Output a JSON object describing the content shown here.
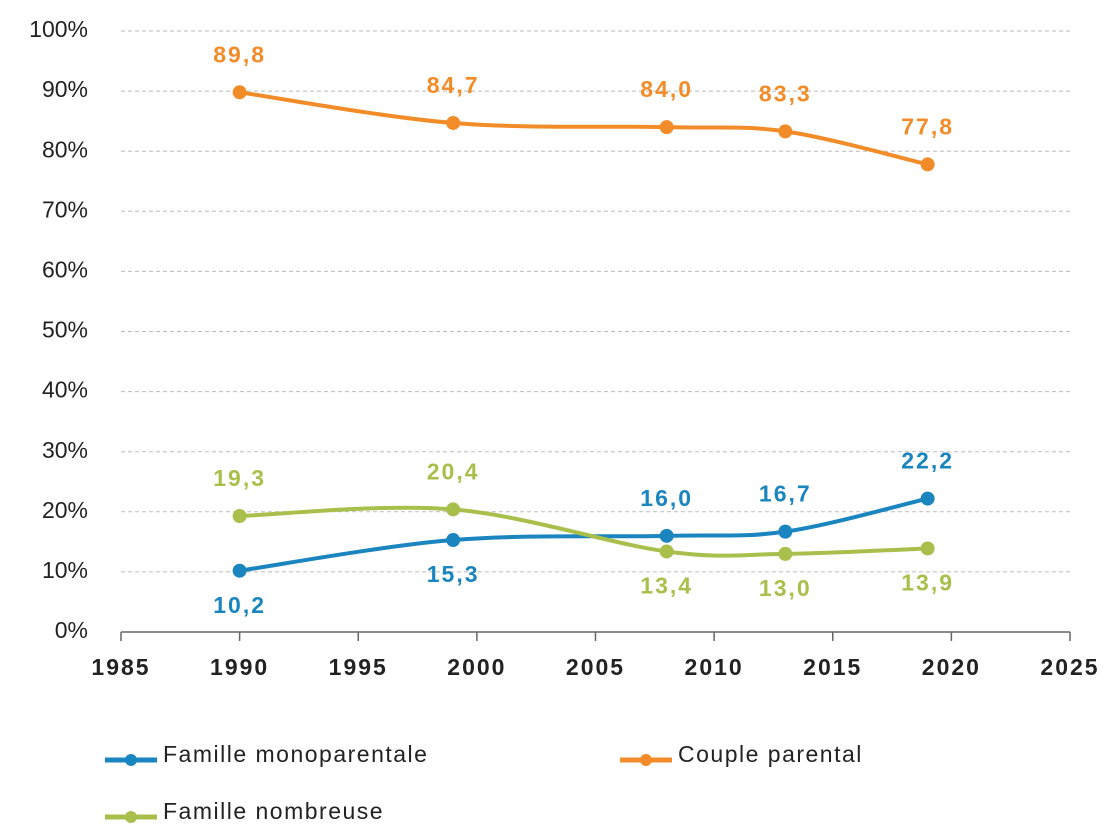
{
  "chart_data": {
    "type": "line",
    "x": [
      1990,
      1999,
      2008,
      2013,
      2019
    ],
    "series": [
      {
        "name": "Famille monoparentale",
        "color": "#1a85be",
        "values": [
          10.2,
          15.3,
          16.0,
          16.7,
          22.2
        ],
        "value_labels": [
          "10,2",
          "15,3",
          "16,0",
          "16,7",
          "22,2"
        ]
      },
      {
        "name": "Couple parental",
        "color": "#f28c28",
        "values": [
          89.8,
          84.7,
          84.0,
          83.3,
          77.8
        ],
        "value_labels": [
          "89,8",
          "84,7",
          "84,0",
          "83,3",
          "77,8"
        ]
      },
      {
        "name": "Famille nombreuse",
        "color": "#a9bf4c",
        "values": [
          19.3,
          20.4,
          13.4,
          13.0,
          13.9
        ],
        "value_labels": [
          "19,3",
          "20,4",
          "13,4",
          "13,0",
          "13,9"
        ]
      }
    ],
    "xlim": [
      1985,
      2025
    ],
    "xticks": [
      1985,
      1990,
      1995,
      2000,
      2005,
      2010,
      2015,
      2020,
      2025
    ],
    "ylim": [
      0,
      100
    ],
    "yticks": [
      {
        "value": 0,
        "label": "0%"
      },
      {
        "value": 10,
        "label": "10%"
      },
      {
        "value": 20,
        "label": "20%"
      },
      {
        "value": 30,
        "label": "30%"
      },
      {
        "value": 40,
        "label": "40%"
      },
      {
        "value": 50,
        "label": "50%"
      },
      {
        "value": 60,
        "label": "60%"
      },
      {
        "value": 70,
        "label": "70%"
      },
      {
        "value": 80,
        "label": "80%"
      },
      {
        "value": 90,
        "label": "90%"
      },
      {
        "value": 100,
        "label": "100%"
      }
    ],
    "grid": true
  }
}
